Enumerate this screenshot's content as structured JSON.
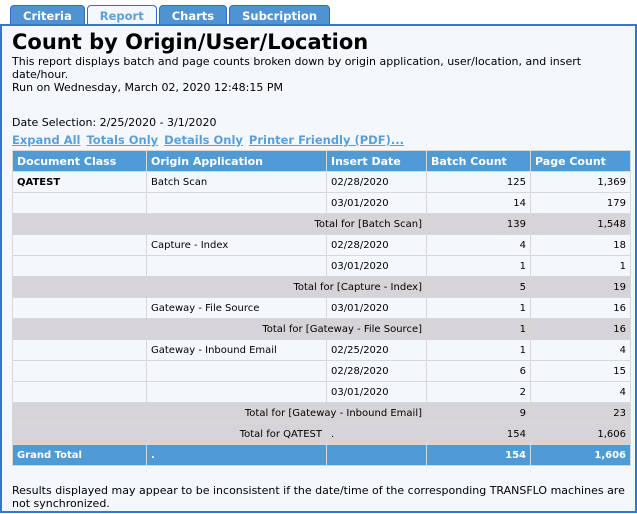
{
  "tabs": [
    "Criteria",
    "Report",
    "Charts",
    "Subcription"
  ],
  "active_tab": "Report",
  "title": "Count by Origin/User/Location",
  "description": "This report displays batch and page counts broken down by origin application, user/location, and insert date/hour.",
  "run_on": "Run on Wednesday, March 02, 2020 12:48:15 PM",
  "date_selection": "Date Selection: 2/25/2020 - 3/1/2020",
  "links": [
    "Expand All",
    "Totals Only",
    "Details Only",
    "Printer Friendly (PDF)..."
  ],
  "columns": [
    "Document Class",
    "Origin Application",
    "Insert Date",
    "Batch Count",
    "Page Count"
  ],
  "rows": [
    {
      "type": "detail",
      "doc_class": "QATEST",
      "origin": "Batch Scan",
      "date": "02/28/2020",
      "batch": "125",
      "page": "1,369"
    },
    {
      "type": "detail",
      "doc_class": "",
      "origin": "",
      "date": "03/01/2020",
      "batch": "14",
      "page": "179"
    },
    {
      "type": "total",
      "label": "Total for [Batch Scan]",
      "batch": "139",
      "page": "1,548"
    },
    {
      "type": "detail",
      "doc_class": "",
      "origin": "Capture - Index",
      "date": "02/28/2020",
      "batch": "4",
      "page": "18"
    },
    {
      "type": "detail",
      "doc_class": "",
      "origin": "",
      "date": "03/01/2020",
      "batch": "1",
      "page": "1"
    },
    {
      "type": "total",
      "label": "Total for [Capture - Index]",
      "batch": "5",
      "page": "19"
    },
    {
      "type": "detail",
      "doc_class": "",
      "origin": "Gateway - File Source",
      "date": "03/01/2020",
      "batch": "1",
      "page": "16"
    },
    {
      "type": "total",
      "label": "Total for [Gateway - File Source]",
      "batch": "1",
      "page": "16"
    },
    {
      "type": "detail",
      "doc_class": "",
      "origin": "Gateway - Inbound Email",
      "date": "02/25/2020",
      "batch": "1",
      "page": "4"
    },
    {
      "type": "detail",
      "doc_class": "",
      "origin": "",
      "date": "02/28/2020",
      "batch": "6",
      "page": "15"
    },
    {
      "type": "detail",
      "doc_class": "",
      "origin": "",
      "date": "03/01/2020",
      "batch": "2",
      "page": "4"
    },
    {
      "type": "total",
      "label": "Total for [Gateway - Inbound Email]",
      "batch": "9",
      "page": "23"
    },
    {
      "type": "classtotal",
      "label": "Total for QATEST",
      "date": ".",
      "batch": "154",
      "page": "1,606"
    },
    {
      "type": "grand",
      "label": "Grand Total",
      "origin": ".",
      "date": "",
      "batch": "154",
      "page": "1,606"
    }
  ],
  "footer": "Results displayed may appear to be inconsistent if the date/time of the corresponding TRANSFLO machines are not synchronized."
}
